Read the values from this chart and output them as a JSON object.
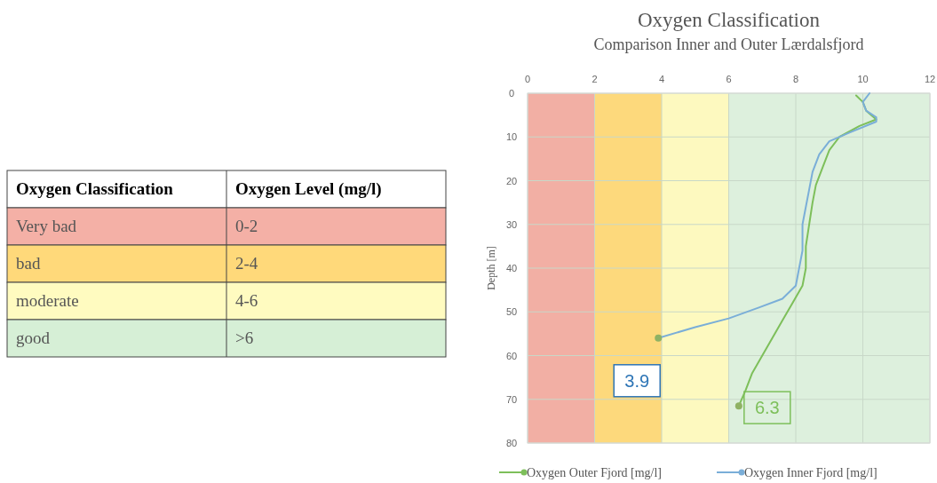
{
  "chart_data": [
    {
      "type": "other",
      "categories": [
        "Very bad",
        "bad",
        "moderate",
        "good"
      ],
      "colors": [
        "#f4b0a6",
        "#ffd97a",
        "#fffbc0",
        "#d6efd6"
      ],
      "annotations": [
        "Oxygen Classification",
        "Oxygen Level (mg/l)",
        "0-2",
        "2-4",
        "4-6",
        ">6"
      ]
    },
    {
      "type": "line",
      "title": "Oxygen Classification",
      "subtitle": "Comparison Inner and Outer Lærdalsfjord",
      "ylabel": "Depth [m]",
      "xlim": [
        0,
        12
      ],
      "xticks": [
        0,
        2,
        4,
        6,
        8,
        10,
        12
      ],
      "ylim": [
        80,
        0
      ],
      "yticks": [
        0,
        10,
        20,
        30,
        40,
        50,
        60,
        70,
        80
      ],
      "grid": true,
      "legend": "bottom",
      "bands": [
        {
          "axis": "x",
          "from": 0,
          "to": 2,
          "color": "#f2afa4"
        },
        {
          "axis": "x",
          "from": 2,
          "to": 4,
          "color": "#fdd97c"
        },
        {
          "axis": "x",
          "from": 4,
          "to": 6,
          "color": "#fdf9bf"
        },
        {
          "axis": "x",
          "from": 6,
          "to": 12,
          "color": "#ddf0dd"
        }
      ],
      "series": [
        {
          "name": "Oxygen Outer Fjord [mg/l]",
          "color": "#7dbf5a",
          "x": [
            9.8,
            10.0,
            10.1,
            10.4,
            9.9,
            9.3,
            9.0,
            8.8,
            8.6,
            8.5,
            8.4,
            8.3,
            8.3,
            8.2,
            7.9,
            7.6,
            7.3,
            7.0,
            6.7,
            6.5,
            6.3
          ],
          "values": [
            0.5,
            2,
            4,
            6,
            7.5,
            10,
            13,
            17,
            21,
            25,
            30,
            35,
            40,
            44,
            48,
            52,
            56,
            60,
            64,
            68,
            71.5
          ]
        },
        {
          "name": "Oxygen Inner Fjord [mg/l]",
          "color": "#7aaed8",
          "x": [
            10.2,
            10.0,
            10.1,
            10.4,
            10.4,
            9.6,
            9.0,
            8.7,
            8.5,
            8.4,
            8.3,
            8.2,
            8.2,
            8.1,
            8.0,
            7.6,
            6.9,
            6.0,
            5.0,
            3.9
          ],
          "values": [
            0,
            2,
            4,
            5.5,
            6.5,
            9,
            11,
            14,
            18,
            22,
            26,
            30,
            36,
            40,
            44,
            47,
            49,
            51.5,
            53.5,
            56
          ]
        }
      ],
      "annotations": [
        {
          "text": "3.9",
          "x": 3.9,
          "y": 56
        },
        {
          "text": "6.3",
          "x": 6.3,
          "y": 71.5
        }
      ]
    }
  ]
}
